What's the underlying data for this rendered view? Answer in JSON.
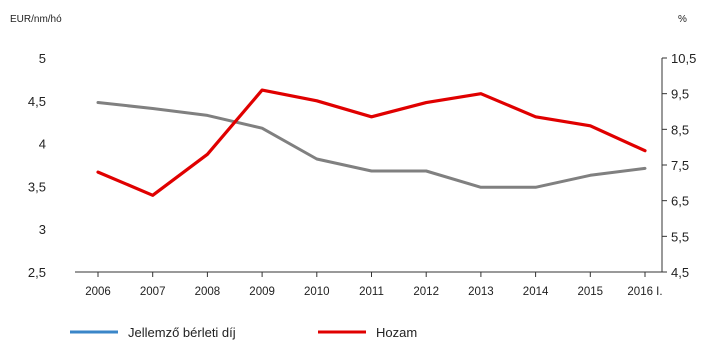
{
  "chart_data": {
    "type": "line",
    "x": [
      "2006",
      "2007",
      "2008",
      "2009",
      "2010",
      "2011",
      "2012",
      "2013",
      "2014",
      "2015",
      "2016 I."
    ],
    "y_left": {
      "unit_label": "EUR/nm/hó",
      "range": [
        2.5,
        5
      ],
      "ticks": [
        "2,5",
        "3",
        "3,5",
        "4",
        "4,5",
        "5"
      ],
      "tick_values": [
        2.5,
        3,
        3.5,
        4,
        4.5,
        5
      ]
    },
    "y_right": {
      "unit_label": "%",
      "range": [
        4.5,
        10.5
      ],
      "ticks": [
        "4,5",
        "5,5",
        "6,5",
        "7,5",
        "8,5",
        "9,5",
        "10,5"
      ],
      "tick_values": [
        4.5,
        5.5,
        6.5,
        7.5,
        8.5,
        9.5,
        10.5
      ]
    },
    "series": [
      {
        "name": "Jellemző bérleti díj",
        "axis": "left",
        "legend_color": "#3a86c8",
        "line_color": "#808080",
        "values": [
          4.48,
          4.41,
          4.33,
          4.18,
          3.82,
          3.68,
          3.68,
          3.49,
          3.49,
          3.63,
          3.71
        ]
      },
      {
        "name": "Hozam",
        "axis": "right",
        "legend_color": "#e00000",
        "line_color": "#e00000",
        "values": [
          7.3,
          6.65,
          7.8,
          9.6,
          9.3,
          8.85,
          9.25,
          9.5,
          8.85,
          8.6,
          7.9
        ]
      }
    ],
    "grid": false,
    "legend_position": "bottom-left"
  }
}
